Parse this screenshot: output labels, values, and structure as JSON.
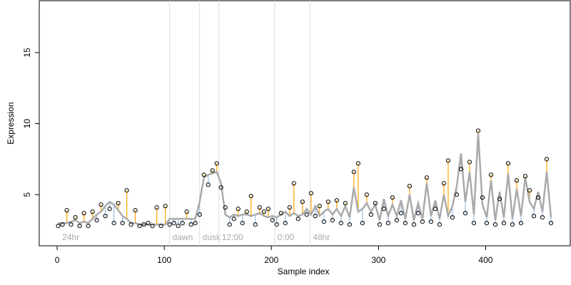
{
  "chart_data": {
    "type": "scatter",
    "x_label": "Sample index",
    "y_label": "Expression",
    "xlim": [
      -16.7,
      479
    ],
    "ylim": [
      1.4,
      18.65
    ],
    "xticks": [
      0,
      100,
      200,
      300,
      400
    ],
    "yticks": [
      5,
      10,
      15
    ],
    "above_color": "#ffa500",
    "below_color": "#9dbfe6",
    "annotations": [
      {
        "x": 2,
        "label": "24hr",
        "line": false
      },
      {
        "x": 105,
        "label": "dawn",
        "line": true
      },
      {
        "x": 133,
        "label": "dusk",
        "line": true
      },
      {
        "x": 151,
        "label": "12:00",
        "line": true
      },
      {
        "x": 203,
        "label": "0:00",
        "line": true
      },
      {
        "x": 236,
        "label": "48hr",
        "line": true
      }
    ],
    "x": [
      1,
      5,
      9,
      13,
      17,
      21,
      25,
      29,
      33,
      37,
      41,
      45,
      49,
      53,
      57,
      61,
      65,
      69,
      73,
      77,
      81,
      85,
      89,
      93,
      97,
      101,
      105,
      109,
      113,
      117,
      121,
      125,
      129,
      133,
      137,
      141,
      145,
      149,
      153,
      157,
      161,
      165,
      169,
      173,
      177,
      181,
      185,
      189,
      193,
      197,
      201,
      205,
      209,
      213,
      217,
      221,
      225,
      229,
      233,
      237,
      241,
      245,
      249,
      253,
      257,
      261,
      265,
      269,
      273,
      277,
      281,
      285,
      289,
      293,
      297,
      301,
      305,
      309,
      313,
      317,
      321,
      325,
      329,
      333,
      337,
      341,
      345,
      349,
      353,
      357,
      361,
      365,
      369,
      373,
      377,
      381,
      385,
      389,
      393,
      397,
      401,
      405,
      409,
      413,
      417,
      421,
      425,
      429,
      433,
      437,
      441,
      445,
      449,
      453,
      457,
      461
    ],
    "series": [
      {
        "color": "#000000",
        "values": [
          2.8,
          2.9,
          3.9,
          2.9,
          3.4,
          2.8,
          3.7,
          2.8,
          3.8,
          3.2,
          4.3,
          3.5,
          4.0,
          3.0,
          4.4,
          3.0,
          5.3,
          2.9,
          3.9,
          2.8,
          2.9,
          3.0,
          2.8,
          4.1,
          2.8,
          4.2,
          2.9,
          3.0,
          2.8,
          3.0,
          3.8,
          2.9,
          3.0,
          3.6,
          6.4,
          5.7,
          6.7,
          7.2,
          5.5,
          4.1,
          2.9,
          3.3,
          4.0,
          3.0,
          3.8,
          4.9,
          2.9,
          4.1,
          3.8,
          4.0,
          3.2,
          2.9,
          3.7,
          3.0,
          4.1,
          5.8,
          3.3,
          4.5,
          3.6,
          5.1,
          3.5,
          4.2,
          3.1,
          4.5,
          3.2,
          4.6,
          3.0,
          4.4,
          2.9,
          6.6,
          7.2,
          3.0,
          5.0,
          3.6,
          4.4,
          2.9,
          4.0,
          3.0,
          4.8,
          3.2,
          3.7,
          3.0,
          5.6,
          2.9,
          3.7,
          3.1,
          6.2,
          3.1,
          4.0,
          2.9,
          5.8,
          7.4,
          3.4,
          5.0,
          6.8,
          3.7,
          7.3,
          3.0,
          9.5,
          4.8,
          3.0,
          6.4,
          2.9,
          4.7,
          3.0,
          7.2,
          2.9,
          6.0,
          3.0,
          6.3,
          5.3,
          3.5,
          4.8,
          3.4,
          7.5,
          3.0
        ]
      },
      {
        "color": "#aaaaaa",
        "values": [
          3.0,
          3.0,
          3.0,
          3.1,
          3.2,
          3.0,
          3.1,
          3.0,
          3.3,
          3.6,
          3.8,
          4.2,
          4.5,
          4.3,
          3.9,
          3.5,
          3.3,
          3.0,
          3.0,
          2.9,
          2.9,
          2.9,
          2.9,
          2.9,
          2.9,
          2.9,
          3.3,
          3.3,
          3.3,
          3.3,
          3.3,
          3.3,
          3.3,
          4.5,
          6.2,
          6.4,
          6.5,
          6.6,
          5.8,
          3.6,
          3.4,
          3.6,
          3.5,
          3.6,
          3.6,
          3.5,
          3.6,
          3.7,
          3.5,
          3.4,
          3.5,
          3.4,
          3.6,
          3.8,
          3.5,
          3.7,
          3.5,
          3.6,
          4.0,
          3.6,
          4.2,
          3.5,
          3.8,
          4.0,
          3.6,
          4.0,
          3.5,
          4.2,
          3.4,
          5.5,
          3.8,
          4.0,
          4.4,
          3.8,
          4.3,
          3.2,
          4.7,
          3.5,
          4.3,
          3.5,
          4.6,
          3.3,
          5.0,
          3.2,
          4.4,
          3.3,
          5.8,
          3.5,
          4.6,
          3.3,
          5.0,
          3.5,
          4.2,
          5.6,
          7.9,
          4.5,
          6.6,
          3.6,
          9.3,
          4.3,
          3.4,
          6.0,
          3.2,
          5.2,
          3.4,
          6.5,
          3.3,
          5.4,
          3.5,
          6.2,
          4.5,
          4.0,
          5.2,
          3.8,
          6.6,
          3.4
        ]
      }
    ]
  }
}
